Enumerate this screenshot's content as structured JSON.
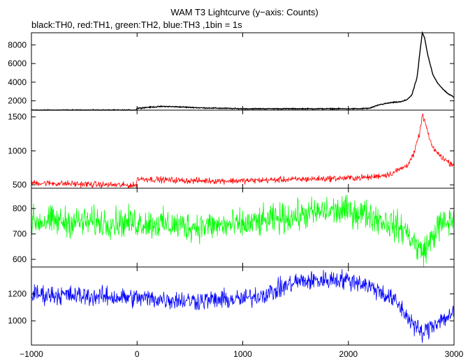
{
  "chart_data": {
    "type": "line",
    "title": "WAM T3 Lightcurve (y−axis: Counts)",
    "subtitle": "black:TH0, red:TH1, green:TH2, blue:TH3 ,1bin = 1s",
    "x_range": [
      -1000,
      3000
    ],
    "x_ticks": [
      -1000,
      0,
      1000,
      2000,
      3000
    ],
    "x_tick_labels": [
      "−1000",
      "0",
      "1000",
      "2000",
      "3000"
    ],
    "grid": false,
    "panels": [
      {
        "name": "TH0",
        "color": "#000000",
        "ylim": [
          1000,
          9300
        ],
        "y_ticks": [
          2000,
          4000,
          6000,
          8000
        ],
        "y_tick_labels": [
          "2000",
          "4000",
          "6000",
          "8000"
        ],
        "noise": 40,
        "curve": [
          [
            -1000,
            1000
          ],
          [
            -10,
            1000
          ],
          [
            0,
            1200
          ],
          [
            100,
            1300
          ],
          [
            250,
            1400
          ],
          [
            400,
            1350
          ],
          [
            600,
            1250
          ],
          [
            800,
            1200
          ],
          [
            1000,
            1150
          ],
          [
            1200,
            1150
          ],
          [
            1500,
            1150
          ],
          [
            1800,
            1150
          ],
          [
            2000,
            1150
          ],
          [
            2100,
            1150
          ],
          [
            2200,
            1200
          ],
          [
            2300,
            1600
          ],
          [
            2400,
            1800
          ],
          [
            2500,
            1900
          ],
          [
            2550,
            2100
          ],
          [
            2600,
            2600
          ],
          [
            2650,
            4500
          ],
          [
            2680,
            7500
          ],
          [
            2700,
            9300
          ],
          [
            2720,
            8800
          ],
          [
            2750,
            7000
          ],
          [
            2800,
            4800
          ],
          [
            2850,
            3800
          ],
          [
            2900,
            3200
          ],
          [
            2950,
            2700
          ],
          [
            3000,
            2400
          ]
        ]
      },
      {
        "name": "TH1",
        "color": "#ff0000",
        "ylim": [
          450,
          1600
        ],
        "y_ticks": [
          500,
          1000,
          1500
        ],
        "y_tick_labels": [
          "500",
          "1000",
          "1500"
        ],
        "noise": 35,
        "curve": [
          [
            -1000,
            530
          ],
          [
            -10,
            490
          ],
          [
            0,
            590
          ],
          [
            500,
            560
          ],
          [
            1000,
            560
          ],
          [
            1500,
            580
          ],
          [
            2000,
            600
          ],
          [
            2200,
            610
          ],
          [
            2400,
            660
          ],
          [
            2550,
            780
          ],
          [
            2620,
            950
          ],
          [
            2680,
            1300
          ],
          [
            2700,
            1530
          ],
          [
            2730,
            1400
          ],
          [
            2780,
            1100
          ],
          [
            2850,
            950
          ],
          [
            2950,
            830
          ],
          [
            3000,
            800
          ]
        ]
      },
      {
        "name": "TH2",
        "color": "#00ff00",
        "ylim": [
          570,
          880
        ],
        "y_ticks": [
          600,
          700,
          800
        ],
        "y_tick_labels": [
          "600",
          "700",
          "800"
        ],
        "noise": 45,
        "curve": [
          [
            -1000,
            750
          ],
          [
            0,
            745
          ],
          [
            500,
            730
          ],
          [
            1000,
            735
          ],
          [
            1500,
            770
          ],
          [
            1800,
            790
          ],
          [
            2000,
            790
          ],
          [
            2200,
            775
          ],
          [
            2400,
            740
          ],
          [
            2550,
            710
          ],
          [
            2650,
            650
          ],
          [
            2700,
            630
          ],
          [
            2760,
            660
          ],
          [
            2850,
            730
          ],
          [
            3000,
            755
          ]
        ]
      },
      {
        "name": "TH3",
        "color": "#0000ff",
        "ylim": [
          820,
          1400
        ],
        "y_ticks": [
          1000,
          1200
        ],
        "y_tick_labels": [
          "1000",
          "1200"
        ],
        "noise": 55,
        "curve": [
          [
            -1000,
            1200
          ],
          [
            0,
            1170
          ],
          [
            500,
            1150
          ],
          [
            1000,
            1160
          ],
          [
            1300,
            1220
          ],
          [
            1500,
            1290
          ],
          [
            1700,
            1300
          ],
          [
            1900,
            1310
          ],
          [
            2100,
            1290
          ],
          [
            2300,
            1220
          ],
          [
            2450,
            1140
          ],
          [
            2600,
            990
          ],
          [
            2700,
            900
          ],
          [
            2780,
            960
          ],
          [
            2850,
            1000
          ],
          [
            3000,
            1050
          ]
        ]
      }
    ]
  }
}
